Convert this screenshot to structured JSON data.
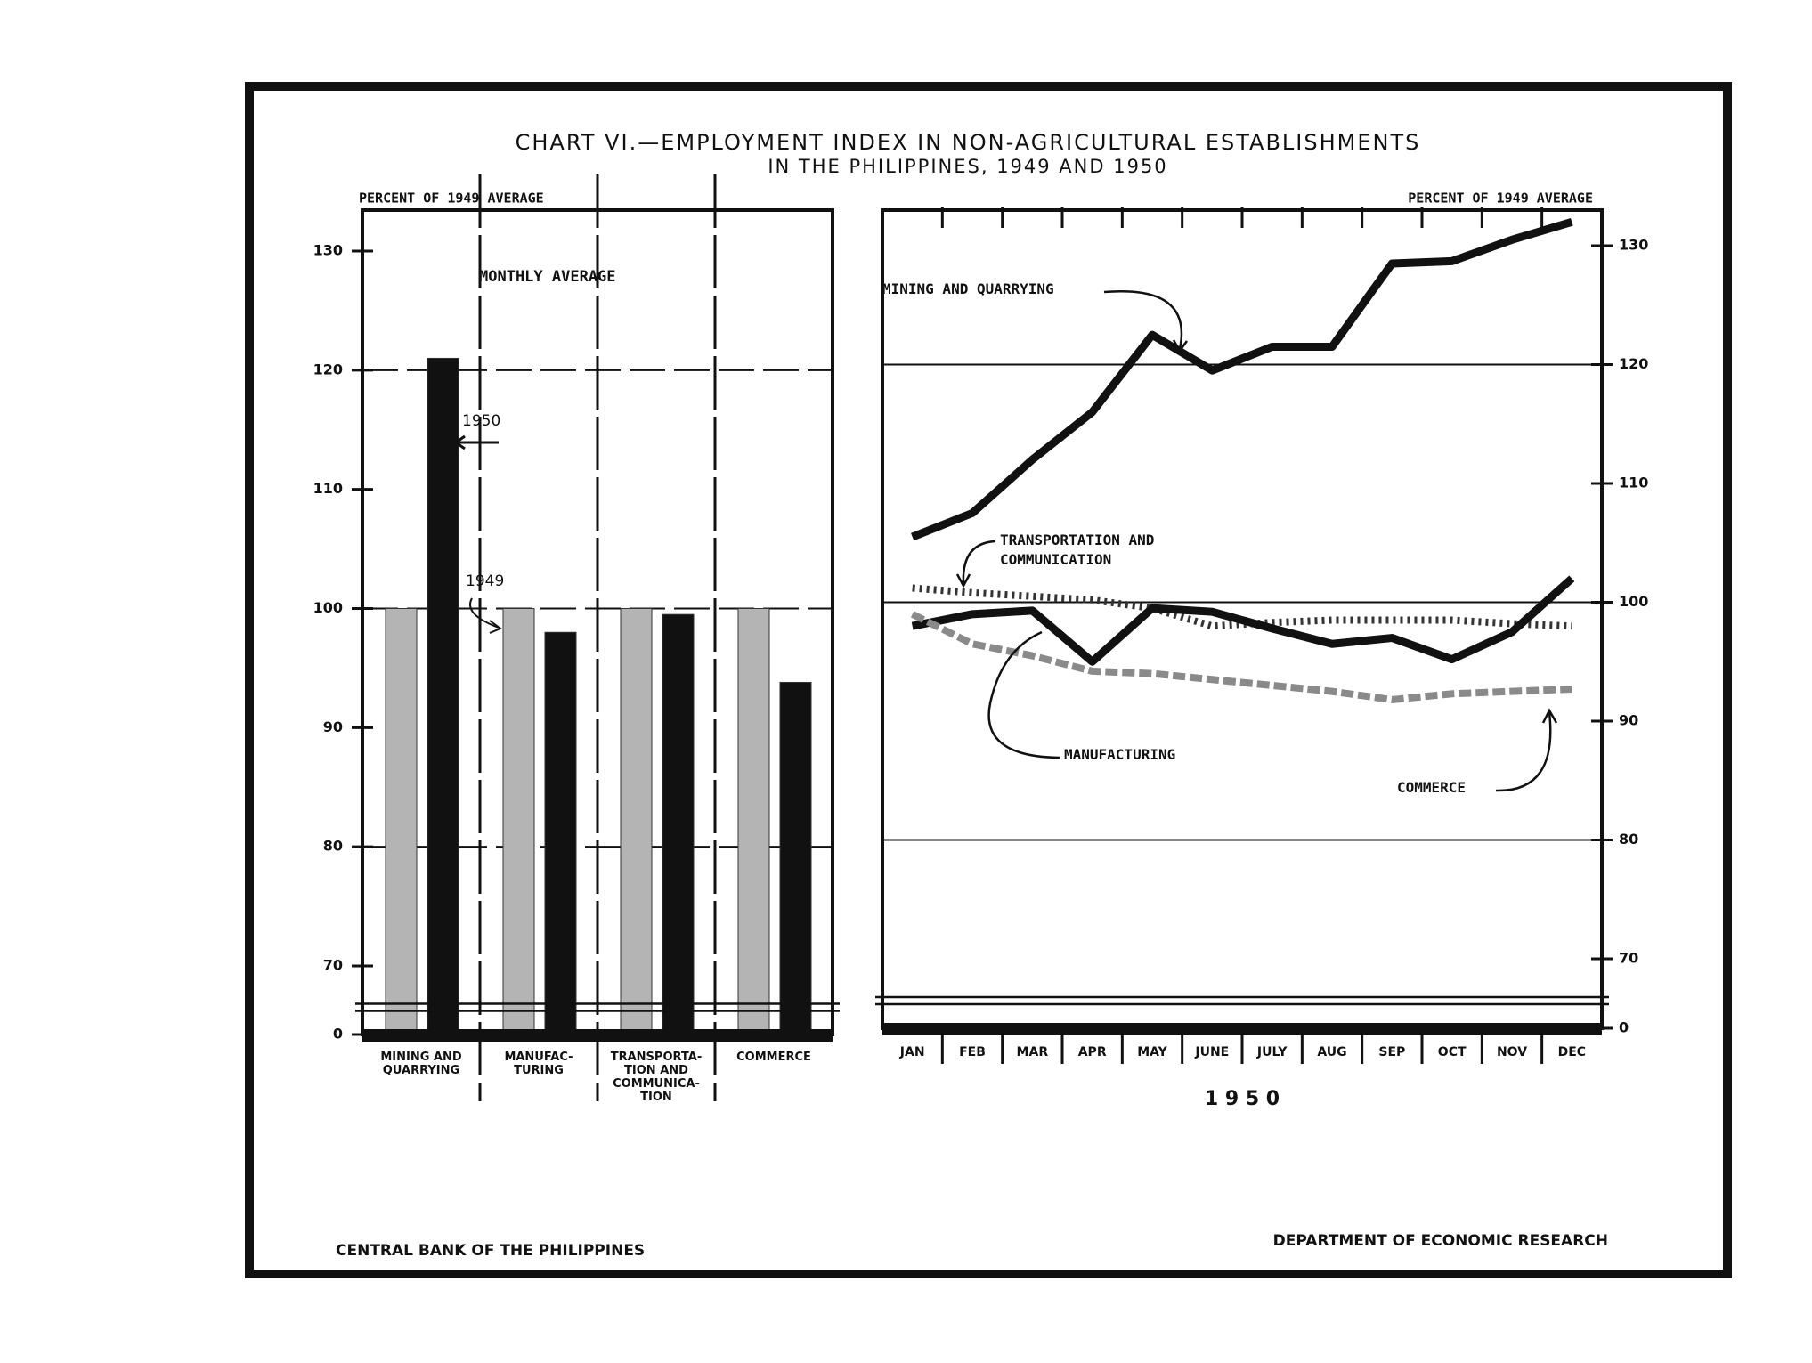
{
  "title": [
    "CHART VI.—EMPLOYMENT INDEX IN NON-AGRICULTURAL ESTABLISHMENTS",
    "IN THE PHILIPPINES, 1949 AND 1950"
  ],
  "chart_data": [
    {
      "type": "bar",
      "y_label": "PERCENT OF 1949 AVERAGE",
      "annotations": [
        "MONTHLY AVERAGE",
        "1950",
        "1949"
      ],
      "categories": [
        "MINING AND\nQUARRYING",
        "MANUFAC-\nTURING",
        "TRANSPORTA-\nTION AND\nCOMMUNICA-\nTION",
        "COMMERCE"
      ],
      "series": [
        {
          "name": "1949",
          "color": "#b4b4b4",
          "values": [
            100,
            100,
            100,
            100
          ]
        },
        {
          "name": "1950",
          "color": "#111111",
          "values": [
            121,
            98,
            99.5,
            93.8
          ]
        }
      ],
      "ylim": [
        0,
        132
      ],
      "yticks": [
        0,
        70,
        80,
        90,
        100,
        110,
        120,
        130
      ],
      "axis_break": true,
      "grid": true
    },
    {
      "type": "line",
      "y_label": "PERCENT OF 1949 AVERAGE",
      "x_label": "1 9 5 0",
      "categories": [
        "JAN",
        "FEB",
        "MAR",
        "APR",
        "MAY",
        "JUNE",
        "JULY",
        "AUG",
        "SEP",
        "OCT",
        "NOV",
        "DEC"
      ],
      "series": [
        {
          "name": "MINING AND QUARRYING",
          "color": "#111111",
          "line_style": "solid",
          "values": [
            105.5,
            107.5,
            112,
            116,
            122.5,
            119.5,
            121.5,
            121.5,
            128.5,
            128.7,
            130.5,
            132
          ]
        },
        {
          "name": "TRANSPORTATION AND\nCOMMUNICATION",
          "color": "#333333",
          "line_style": "dotted",
          "values": [
            101.2,
            100.8,
            100.5,
            100.2,
            99.5,
            98,
            98.3,
            98.5,
            98.5,
            98.5,
            98.2,
            98
          ]
        },
        {
          "name": "MANUFACTURING",
          "color": "#111111",
          "line_style": "solid",
          "values": [
            98,
            99,
            99.3,
            95,
            99.5,
            99.2,
            97.8,
            96.5,
            97,
            95.2,
            97.5,
            102
          ]
        },
        {
          "name": "COMMERCE",
          "color": "#8a8a8a",
          "line_style": "dashed",
          "values": [
            99,
            96.5,
            95.5,
            94.2,
            94,
            93.5,
            93,
            92.5,
            91.8,
            92.3,
            92.5,
            92.7
          ]
        }
      ],
      "ylim": [
        0,
        132
      ],
      "yticks": [
        0,
        70,
        80,
        90,
        100,
        110,
        120,
        130
      ],
      "axis_break": true,
      "grid": true
    }
  ],
  "footer": {
    "left": "CENTRAL BANK OF THE PHILIPPINES",
    "right": "DEPARTMENT OF ECONOMIC RESEARCH"
  }
}
